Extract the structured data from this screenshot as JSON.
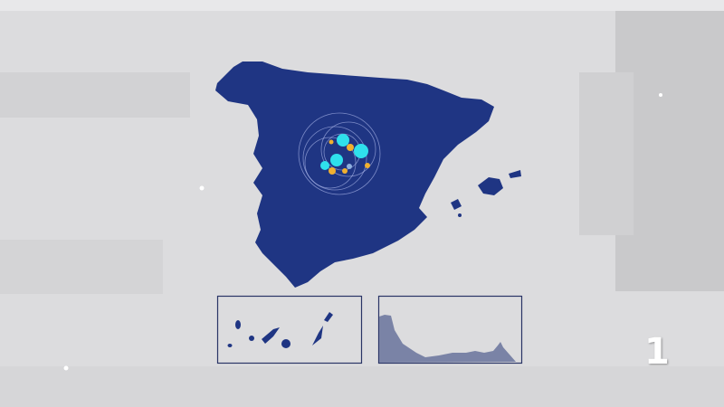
{
  "map": {
    "land_color": "#1f3583",
    "inset_land_color": "#7a83a6",
    "frame_color": "#2a3566",
    "marker_colors": {
      "large": "#2fe0ec",
      "small": "#f0b030"
    },
    "insets": [
      "canary-islands",
      "strait-coast"
    ]
  },
  "channel_logo": {
    "text": "1",
    "color": "#ffffff"
  }
}
